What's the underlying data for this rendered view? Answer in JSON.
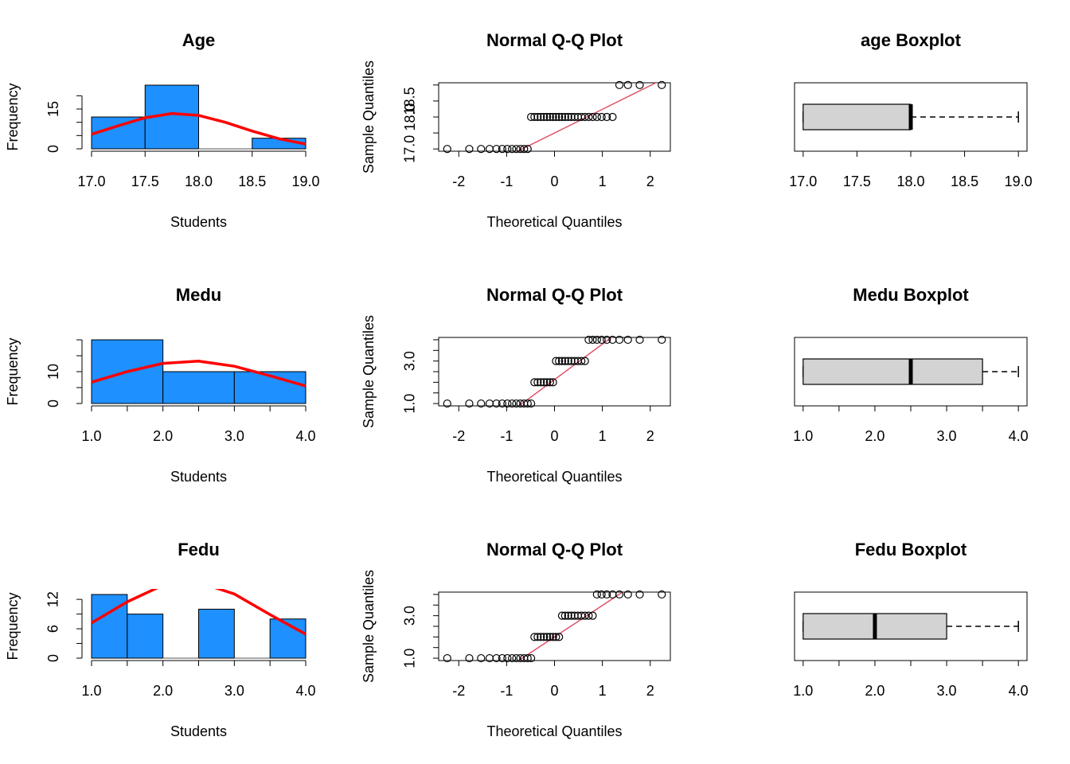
{
  "chart_data": [
    {
      "type": "histogram",
      "title": "Age",
      "xlabel": "Students",
      "ylabel": "Frequency",
      "color": "#1e90ff",
      "bins": [
        17,
        17.5,
        18,
        18.5,
        19
      ],
      "values": [
        12,
        24,
        0,
        4
      ],
      "curve": {
        "color": "red",
        "x": [
          17,
          17.25,
          17.5,
          17.75,
          18,
          18.25,
          18.5,
          18.75,
          19
        ],
        "values": [
          5.5,
          8.7,
          11.7,
          13.3,
          12.6,
          10.0,
          6.7,
          3.8,
          1.8
        ]
      },
      "xlim": [
        17,
        19
      ],
      "ylim": [
        0,
        24
      ],
      "xticks": [
        {
          "value": 17,
          "label": "17.0"
        },
        {
          "value": 17.5,
          "label": "17.5"
        },
        {
          "value": 18,
          "label": "18.0"
        },
        {
          "value": 18.5,
          "label": "18.5"
        },
        {
          "value": 19,
          "label": "19.0"
        }
      ],
      "xminorticks": [],
      "yticks": [
        0,
        15
      ],
      "yminorticks": [
        5,
        10,
        20
      ]
    },
    {
      "type": "qq",
      "title": "Normal Q-Q Plot",
      "xlabel": "Theoretical Quantiles",
      "ylabel": "Sample Quantiles",
      "x": [
        -2.241,
        -1.78,
        -1.534,
        -1.356,
        -1.213,
        -1.092,
        -0.984,
        -0.887,
        -0.798,
        -0.714,
        -0.636,
        -0.561,
        -0.489,
        -0.419,
        -0.352,
        -0.286,
        -0.221,
        -0.157,
        -0.094,
        -0.031,
        0.031,
        0.094,
        0.157,
        0.221,
        0.286,
        0.352,
        0.419,
        0.489,
        0.561,
        0.636,
        0.714,
        0.798,
        0.887,
        0.984,
        1.092,
        1.213,
        1.356,
        1.534,
        1.78,
        2.241
      ],
      "values": [
        17,
        17,
        17,
        17,
        17,
        17,
        17,
        17,
        17,
        17,
        17,
        17,
        18,
        18,
        18,
        18,
        18,
        18,
        18,
        18,
        18,
        18,
        18,
        18,
        18,
        18,
        18,
        18,
        18,
        18,
        18,
        18,
        18,
        18,
        18,
        18,
        19,
        19,
        19,
        19
      ],
      "qqline": {
        "intercept": 17.5,
        "slope": 0.741,
        "color": "#df536b"
      },
      "xlim": [
        -2.42,
        2.42
      ],
      "ylim": [
        16.93,
        19.07
      ],
      "xticks": [
        -2,
        -1,
        0,
        1,
        2
      ],
      "xminorticks": [],
      "yticks": [
        {
          "value": 17,
          "label": "17.0"
        },
        {
          "value": 18,
          "label": "18.0"
        },
        {
          "value": 18.5,
          "label": "18.5"
        }
      ],
      "yminorticks": [
        17.5,
        19
      ]
    },
    {
      "type": "boxplot",
      "title": "age Boxplot",
      "fill": "#d3d3d3",
      "stats": {
        "min": 17,
        "q1": 17,
        "median": 18,
        "q3": 18,
        "max": 19
      },
      "xlim": [
        16.92,
        19.08
      ],
      "xticks": [
        {
          "value": 17,
          "label": "17.0"
        },
        {
          "value": 17.5,
          "label": "17.5"
        },
        {
          "value": 18,
          "label": "18.0"
        },
        {
          "value": 18.5,
          "label": "18.5"
        },
        {
          "value": 19,
          "label": "19.0"
        }
      ],
      "xminorticks": []
    },
    {
      "type": "histogram",
      "title": "Medu",
      "xlabel": "Students",
      "ylabel": "Frequency",
      "color": "#1e90ff",
      "bins": [
        1,
        2,
        3,
        4
      ],
      "values": [
        20,
        10,
        10
      ],
      "curve": {
        "color": "red",
        "x": [
          1,
          1.5,
          2,
          2.5,
          3,
          3.5,
          4
        ],
        "values": [
          6.7,
          10.0,
          12.6,
          13.3,
          11.7,
          8.7,
          5.5
        ]
      },
      "xlim": [
        1,
        4
      ],
      "ylim": [
        0,
        20
      ],
      "xticks": [
        {
          "value": 1,
          "label": "1.0"
        },
        {
          "value": 2,
          "label": "2.0"
        },
        {
          "value": 3,
          "label": "3.0"
        },
        {
          "value": 4,
          "label": "4.0"
        }
      ],
      "xminorticks": [
        1.5,
        2.5,
        3.5
      ],
      "yticks": [
        0,
        10
      ],
      "yminorticks": [
        5,
        15,
        20
      ]
    },
    {
      "type": "qq",
      "title": "Normal Q-Q Plot",
      "xlabel": "Theoretical Quantiles",
      "ylabel": "Sample Quantiles",
      "x": [
        -2.241,
        -1.78,
        -1.534,
        -1.356,
        -1.213,
        -1.092,
        -0.984,
        -0.887,
        -0.798,
        -0.714,
        -0.636,
        -0.561,
        -0.489,
        -0.419,
        -0.352,
        -0.286,
        -0.221,
        -0.157,
        -0.094,
        -0.031,
        0.031,
        0.094,
        0.157,
        0.221,
        0.286,
        0.352,
        0.419,
        0.489,
        0.561,
        0.636,
        0.714,
        0.798,
        0.887,
        0.984,
        1.092,
        1.213,
        1.356,
        1.534,
        1.78,
        2.241
      ],
      "values": [
        1,
        1,
        1,
        1,
        1,
        1,
        1,
        1,
        1,
        1,
        1,
        1,
        1,
        2,
        2,
        2,
        2,
        2,
        2,
        2,
        3,
        3,
        3,
        3,
        3,
        3,
        3,
        3,
        3,
        3,
        4,
        4,
        4,
        4,
        4,
        4,
        4,
        4,
        4,
        4
      ],
      "qqline": {
        "intercept": 2.125,
        "slope": 1.668,
        "color": "#df536b"
      },
      "xlim": [
        -2.42,
        2.42
      ],
      "ylim": [
        0.89,
        4.11
      ],
      "xticks": [
        -2,
        -1,
        0,
        1,
        2
      ],
      "xminorticks": [],
      "yticks": [
        {
          "value": 1,
          "label": "1.0"
        },
        {
          "value": 3,
          "label": "3.0"
        }
      ],
      "yminorticks": [
        1.5,
        2,
        2.5,
        3.5,
        4
      ]
    },
    {
      "type": "boxplot",
      "title": "Medu Boxplot",
      "fill": "#d3d3d3",
      "stats": {
        "min": 1,
        "q1": 1,
        "median": 2.5,
        "q3": 3.5,
        "max": 4
      },
      "xlim": [
        0.88,
        4.12
      ],
      "xticks": [
        {
          "value": 1,
          "label": "1.0"
        },
        {
          "value": 2,
          "label": "2.0"
        },
        {
          "value": 3,
          "label": "3.0"
        },
        {
          "value": 4,
          "label": "4.0"
        }
      ],
      "xminorticks": [
        1.5,
        2.5,
        3.5
      ]
    },
    {
      "type": "histogram",
      "title": "Fedu",
      "xlabel": "Students",
      "ylabel": "Frequency",
      "color": "#1e90ff",
      "bins": [
        1,
        1.5,
        2,
        2.5,
        3,
        3.5,
        4
      ],
      "values": [
        13,
        9,
        0,
        10,
        0,
        8
      ],
      "curve": {
        "color": "red",
        "x": [
          1,
          1.5,
          2,
          2.5,
          3,
          3.5,
          4
        ],
        "values": [
          7.2,
          11.5,
          14.9,
          15.5,
          13.1,
          8.9,
          4.9
        ]
      },
      "xlim": [
        1,
        4
      ],
      "ylim": [
        0,
        13
      ],
      "xticks": [
        {
          "value": 1,
          "label": "1.0"
        },
        {
          "value": 2,
          "label": "2.0"
        },
        {
          "value": 3,
          "label": "3.0"
        },
        {
          "value": 4,
          "label": "4.0"
        }
      ],
      "xminorticks": [
        1.5,
        2.5,
        3.5
      ],
      "yticks": [
        0,
        6,
        12
      ],
      "yminorticks": [
        3,
        9
      ]
    },
    {
      "type": "qq",
      "title": "Normal Q-Q Plot",
      "xlabel": "Theoretical Quantiles",
      "ylabel": "Sample Quantiles",
      "x": [
        -2.241,
        -1.78,
        -1.534,
        -1.356,
        -1.213,
        -1.092,
        -0.984,
        -0.887,
        -0.798,
        -0.714,
        -0.636,
        -0.561,
        -0.489,
        -0.419,
        -0.352,
        -0.286,
        -0.221,
        -0.157,
        -0.094,
        -0.031,
        0.031,
        0.094,
        0.157,
        0.221,
        0.286,
        0.352,
        0.419,
        0.489,
        0.561,
        0.636,
        0.714,
        0.798,
        0.887,
        0.984,
        1.092,
        1.213,
        1.356,
        1.534,
        1.78,
        2.241
      ],
      "values": [
        1,
        1,
        1,
        1,
        1,
        1,
        1,
        1,
        1,
        1,
        1,
        1,
        1,
        2,
        2,
        2,
        2,
        2,
        2,
        2,
        2,
        2,
        3,
        3,
        3,
        3,
        3,
        3,
        3,
        3,
        3,
        3,
        4,
        4,
        4,
        4,
        4,
        4,
        4,
        4
      ],
      "qqline": {
        "intercept": 2,
        "slope": 1.483,
        "color": "#df536b"
      },
      "xlim": [
        -2.42,
        2.42
      ],
      "ylim": [
        0.89,
        4.11
      ],
      "xticks": [
        -2,
        -1,
        0,
        1,
        2
      ],
      "xminorticks": [],
      "yticks": [
        {
          "value": 1,
          "label": "1.0"
        },
        {
          "value": 3,
          "label": "3.0"
        }
      ],
      "yminorticks": [
        1.5,
        2,
        2.5,
        3.5,
        4
      ]
    },
    {
      "type": "boxplot",
      "title": "Fedu Boxplot",
      "fill": "#d3d3d3",
      "stats": {
        "min": 1,
        "q1": 1,
        "median": 2,
        "q3": 3,
        "max": 4
      },
      "xlim": [
        0.88,
        4.12
      ],
      "xticks": [
        {
          "value": 1,
          "label": "1.0"
        },
        {
          "value": 2,
          "label": "2.0"
        },
        {
          "value": 3,
          "label": "3.0"
        },
        {
          "value": 4,
          "label": "4.0"
        }
      ],
      "xminorticks": [
        1.5,
        2.5,
        3.5
      ]
    }
  ]
}
